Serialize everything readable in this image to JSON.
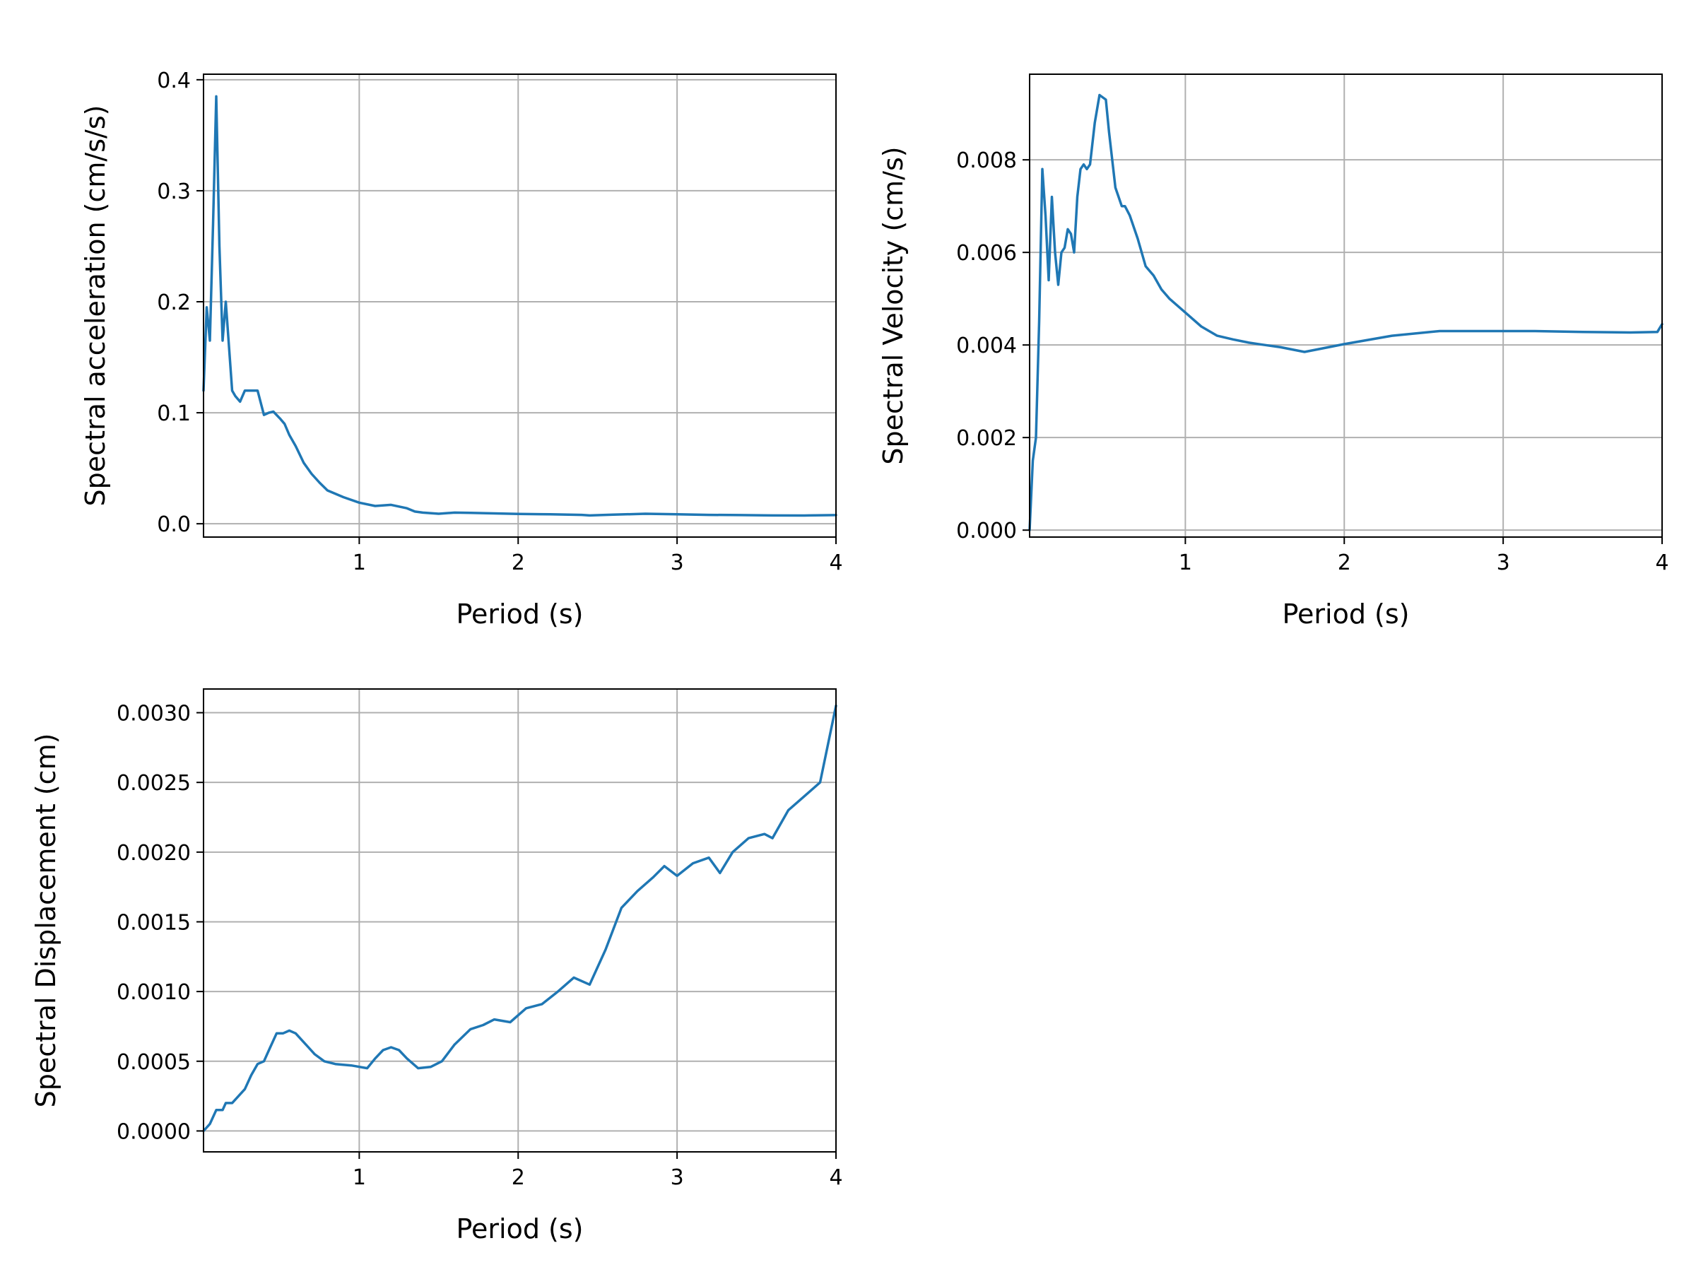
{
  "chart_data": [
    {
      "type": "line",
      "xlabel": "Period (s)",
      "ylabel": "Spectral acceleration (cm/s/s)",
      "xlim": [
        0.02,
        4.0
      ],
      "ylim": [
        -0.012,
        0.405
      ],
      "xticks": [
        1,
        2,
        3,
        4
      ],
      "xtick_labels": [
        "1",
        "2",
        "3",
        "4"
      ],
      "yticks": [
        0.0,
        0.1,
        0.2,
        0.3,
        0.4
      ],
      "ytick_labels": [
        "0.0",
        "0.1",
        "0.2",
        "0.3",
        "0.4"
      ],
      "grid": true,
      "color": "#1f77b4",
      "series": [
        {
          "x": [
            0.02,
            0.04,
            0.06,
            0.08,
            0.1,
            0.12,
            0.14,
            0.16,
            0.18,
            0.2,
            0.22,
            0.25,
            0.28,
            0.3,
            0.33,
            0.36,
            0.4,
            0.43,
            0.46,
            0.5,
            0.53,
            0.56,
            0.6,
            0.65,
            0.7,
            0.75,
            0.8,
            0.9,
            1.0,
            1.1,
            1.2,
            1.3,
            1.35,
            1.4,
            1.5,
            1.6,
            1.7,
            1.8,
            1.9,
            2.0,
            2.2,
            2.4,
            2.45,
            2.6,
            2.8,
            3.0,
            3.2,
            3.4,
            3.6,
            3.8,
            4.0
          ],
          "y": [
            0.12,
            0.195,
            0.165,
            0.27,
            0.385,
            0.25,
            0.165,
            0.2,
            0.16,
            0.12,
            0.115,
            0.11,
            0.12,
            0.12,
            0.12,
            0.12,
            0.098,
            0.1,
            0.101,
            0.095,
            0.09,
            0.08,
            0.07,
            0.055,
            0.045,
            0.037,
            0.03,
            0.024,
            0.019,
            0.016,
            0.017,
            0.014,
            0.011,
            0.01,
            0.009,
            0.01,
            0.0098,
            0.0095,
            0.0092,
            0.0088,
            0.0085,
            0.008,
            0.0075,
            0.0082,
            0.009,
            0.0085,
            0.008,
            0.0078,
            0.0075,
            0.0074,
            0.0078
          ]
        }
      ]
    },
    {
      "type": "line",
      "xlabel": "Period (s)",
      "ylabel": "Spectral Velocity (cm/s)",
      "xlim": [
        0.02,
        4.0
      ],
      "ylim": [
        -0.00015,
        0.00985
      ],
      "xticks": [
        1,
        2,
        3,
        4
      ],
      "xtick_labels": [
        "1",
        "2",
        "3",
        "4"
      ],
      "yticks": [
        0.0,
        0.002,
        0.004,
        0.006,
        0.008
      ],
      "ytick_labels": [
        "0.000",
        "0.002",
        "0.004",
        "0.006",
        "0.008"
      ],
      "grid": true,
      "color": "#1f77b4",
      "series": [
        {
          "x": [
            0.02,
            0.04,
            0.06,
            0.08,
            0.1,
            0.12,
            0.14,
            0.16,
            0.18,
            0.2,
            0.22,
            0.24,
            0.26,
            0.28,
            0.3,
            0.32,
            0.34,
            0.36,
            0.38,
            0.4,
            0.43,
            0.46,
            0.5,
            0.52,
            0.54,
            0.56,
            0.58,
            0.6,
            0.62,
            0.65,
            0.7,
            0.75,
            0.8,
            0.85,
            0.9,
            1.0,
            1.1,
            1.2,
            1.3,
            1.4,
            1.5,
            1.6,
            1.75,
            1.9,
            2.0,
            2.3,
            2.6,
            3.0,
            3.2,
            3.5,
            3.8,
            3.97,
            4.0
          ],
          "y": [
            0.0,
            0.0015,
            0.002,
            0.0045,
            0.0078,
            0.0068,
            0.0054,
            0.0072,
            0.006,
            0.0053,
            0.006,
            0.0061,
            0.0065,
            0.0064,
            0.006,
            0.0072,
            0.0078,
            0.0079,
            0.0078,
            0.0079,
            0.0088,
            0.0094,
            0.0093,
            0.0086,
            0.008,
            0.0074,
            0.0072,
            0.007,
            0.007,
            0.0068,
            0.0063,
            0.0057,
            0.0055,
            0.0052,
            0.005,
            0.0047,
            0.0044,
            0.0042,
            0.00412,
            0.00405,
            0.004,
            0.00395,
            0.00385,
            0.00395,
            0.00402,
            0.0042,
            0.0043,
            0.0043,
            0.0043,
            0.00428,
            0.00427,
            0.00428,
            0.00445
          ]
        }
      ]
    },
    {
      "type": "line",
      "xlabel": "Period (s)",
      "ylabel": "Spectral Displacement (cm)",
      "xlim": [
        0.02,
        4.0
      ],
      "ylim": [
        -0.00015,
        0.00317
      ],
      "xticks": [
        1,
        2,
        3,
        4
      ],
      "xtick_labels": [
        "1",
        "2",
        "3",
        "4"
      ],
      "yticks": [
        0.0,
        0.0005,
        0.001,
        0.0015,
        0.002,
        0.0025,
        0.003
      ],
      "ytick_labels": [
        "0.0000",
        "0.0005",
        "0.0010",
        "0.0015",
        "0.0020",
        "0.0025",
        "0.0030"
      ],
      "grid": true,
      "color": "#1f77b4",
      "series": [
        {
          "x": [
            0.02,
            0.06,
            0.1,
            0.14,
            0.16,
            0.2,
            0.24,
            0.28,
            0.32,
            0.36,
            0.4,
            0.44,
            0.48,
            0.52,
            0.56,
            0.6,
            0.64,
            0.68,
            0.72,
            0.78,
            0.85,
            0.95,
            1.05,
            1.1,
            1.15,
            1.2,
            1.25,
            1.3,
            1.37,
            1.45,
            1.52,
            1.6,
            1.7,
            1.78,
            1.85,
            1.95,
            2.05,
            2.15,
            2.25,
            2.35,
            2.45,
            2.55,
            2.65,
            2.75,
            2.85,
            2.92,
            3.0,
            3.1,
            3.2,
            3.27,
            3.35,
            3.45,
            3.55,
            3.6,
            3.7,
            3.8,
            3.9,
            4.0
          ],
          "y": [
            0.0,
            5e-05,
            0.00015,
            0.00015,
            0.0002,
            0.0002,
            0.00025,
            0.0003,
            0.0004,
            0.00048,
            0.0005,
            0.0006,
            0.0007,
            0.0007,
            0.00072,
            0.0007,
            0.00065,
            0.0006,
            0.00055,
            0.0005,
            0.00048,
            0.00047,
            0.00045,
            0.00052,
            0.00058,
            0.0006,
            0.00058,
            0.00052,
            0.00045,
            0.00046,
            0.0005,
            0.00062,
            0.00073,
            0.00076,
            0.0008,
            0.00078,
            0.00088,
            0.00091,
            0.001,
            0.0011,
            0.00105,
            0.0013,
            0.0016,
            0.00172,
            0.00182,
            0.0019,
            0.00183,
            0.00192,
            0.00196,
            0.00185,
            0.002,
            0.0021,
            0.00213,
            0.0021,
            0.0023,
            0.0024,
            0.0025,
            0.00305
          ]
        }
      ]
    }
  ]
}
